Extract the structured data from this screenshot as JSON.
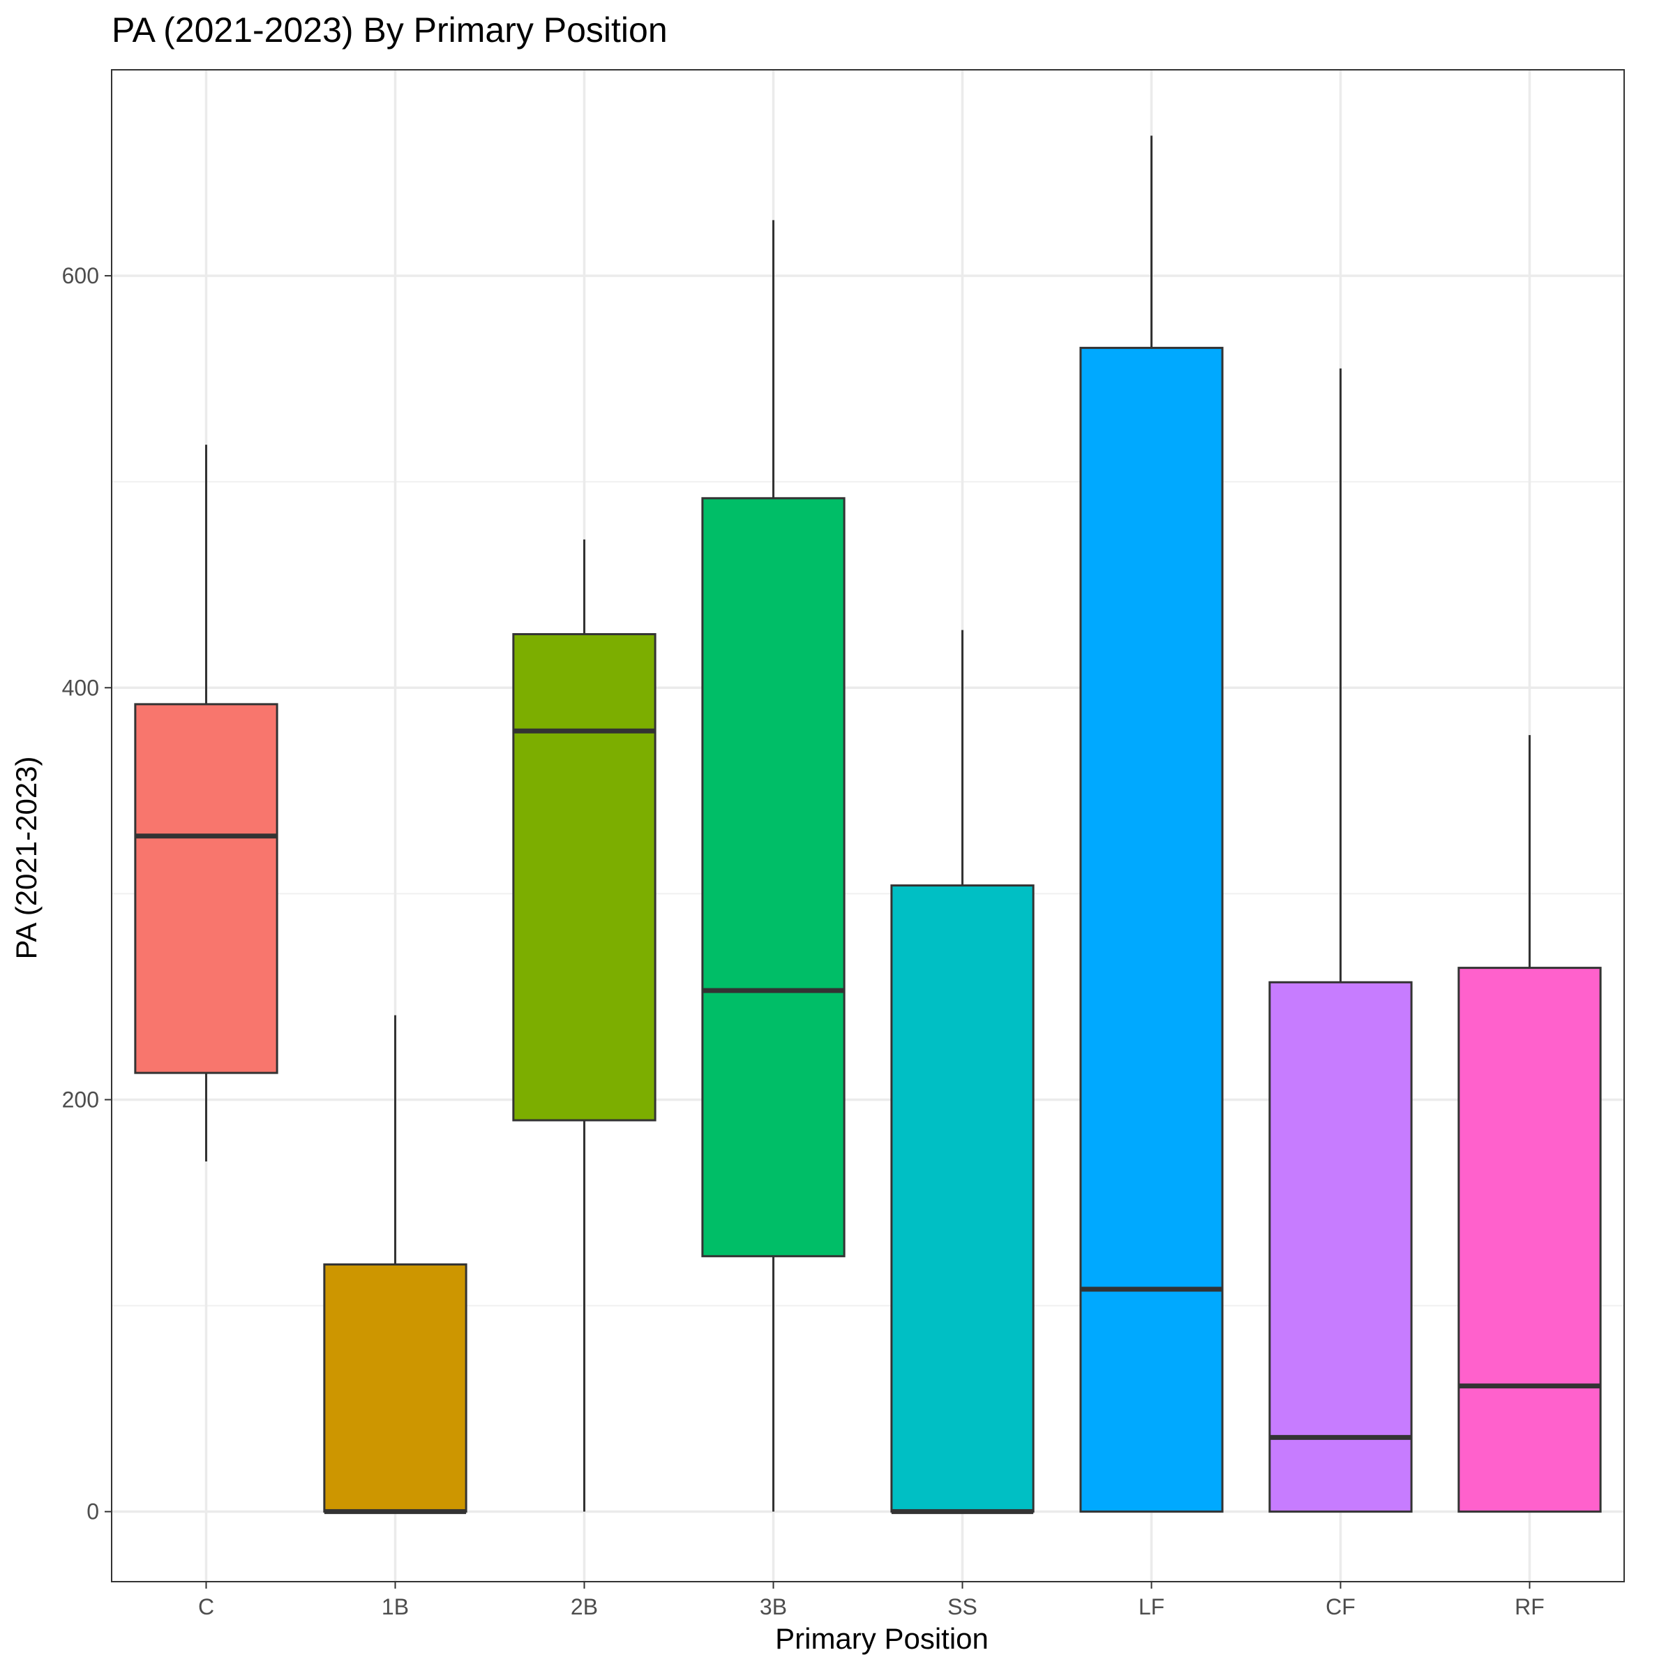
{
  "chart_data": {
    "type": "boxplot",
    "title": "PA (2021-2023) By Primary Position",
    "xlabel": "Primary Position",
    "ylabel": "PA (2021-2023)",
    "ylim": [
      -34,
      700
    ],
    "yticks": [
      0,
      200,
      400,
      600
    ],
    "grid": true,
    "legend": "none",
    "categories": [
      "C",
      "1B",
      "2B",
      "3B",
      "SS",
      "LF",
      "CF",
      "RF"
    ],
    "boxes": [
      {
        "category": "C",
        "min": 170,
        "q1": 213,
        "median": 328,
        "q3": 392,
        "max": 518,
        "color": "#F8766D"
      },
      {
        "category": "1B",
        "min": 0,
        "q1": 0,
        "median": 0,
        "q3": 120,
        "max": 241,
        "color": "#CD9600"
      },
      {
        "category": "2B",
        "min": 0,
        "q1": 190,
        "median": 379,
        "q3": 426,
        "max": 472,
        "color": "#7CAE00"
      },
      {
        "category": "3B",
        "min": 0,
        "q1": 124,
        "median": 253,
        "q3": 492,
        "max": 627,
        "color": "#00BE67"
      },
      {
        "category": "SS",
        "min": 0,
        "q1": 0,
        "median": 0,
        "q3": 304,
        "max": 428,
        "color": "#00BFC4"
      },
      {
        "category": "LF",
        "min": 0,
        "q1": 0,
        "median": 108,
        "q3": 565,
        "max": 668,
        "color": "#00A9FF"
      },
      {
        "category": "CF",
        "min": 0,
        "q1": 0,
        "median": 36,
        "q3": 257,
        "max": 555,
        "color": "#C77CFF"
      },
      {
        "category": "RF",
        "min": 0,
        "q1": 0,
        "median": 61,
        "q3": 264,
        "max": 377,
        "color": "#FF61CC"
      }
    ]
  }
}
